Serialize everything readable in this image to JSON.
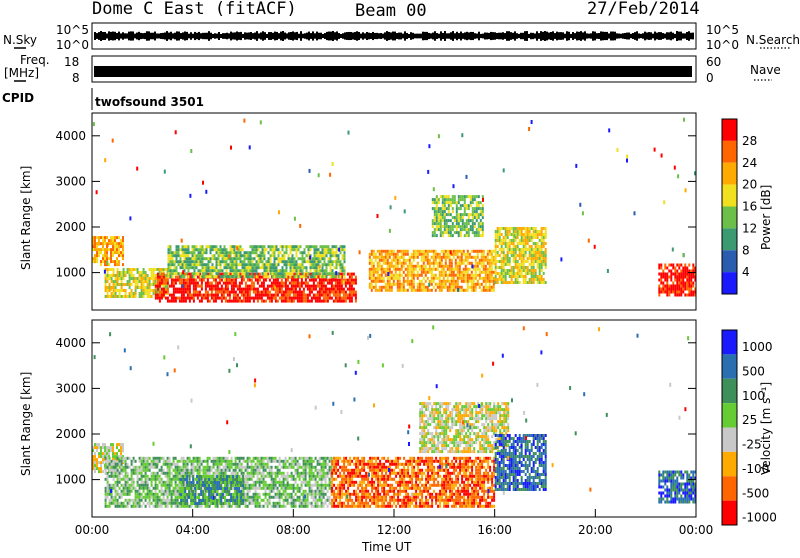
{
  "header": {
    "site": "Dome C East (fitACF)",
    "beam": "Beam 00",
    "date": "27/Feb/2014"
  },
  "strips": {
    "nsky_label": "N.Sky",
    "nsearch_label": "N.Search",
    "freq_label_1": "Freq.",
    "freq_label_2": "[MHz]",
    "nave_label": "Nave",
    "cpid_label": "CPID",
    "cpid_value": "twofsound 3501",
    "noise_ticks": [
      "10^5",
      "10^0"
    ],
    "freq_ticks": [
      "18",
      "8"
    ],
    "nave_ticks": [
      "60",
      "0"
    ]
  },
  "colors": {
    "power": [
      "#1a1aff",
      "#2a5cb0",
      "#3c9a72",
      "#6cc04a",
      "#f0e020",
      "#ffaa00",
      "#ff6600",
      "#ff0000"
    ],
    "velocity": [
      "#ff0000",
      "#ff6600",
      "#ffaa00",
      "#c8c8c8",
      "#66cc33",
      "#3f8f5a",
      "#2a6fb0",
      "#1a1aff"
    ]
  },
  "chart_data": [
    {
      "type": "heatmap",
      "panel": "power",
      "xlabel": "",
      "ylabel": "Slant Range [km]",
      "yticks": [
        "1000",
        "2000",
        "3000",
        "4000"
      ],
      "ylim": [
        180,
        4500
      ],
      "xlim": [
        0,
        24
      ],
      "colorbar_label": "Power [dB]",
      "colorbar_ticks": [
        "4",
        "8",
        "12",
        "16",
        "20",
        "24",
        "28"
      ],
      "regions": [
        {
          "t0": 0.0,
          "t1": 1.2,
          "r0": 1200,
          "r1": 1800,
          "level": 5
        },
        {
          "t0": 0.5,
          "t1": 3.0,
          "r0": 500,
          "r1": 1100,
          "level": 4
        },
        {
          "t0": 2.5,
          "t1": 10.5,
          "r0": 400,
          "r1": 1000,
          "level": 7
        },
        {
          "t0": 3.0,
          "t1": 10.0,
          "r0": 900,
          "r1": 1600,
          "level": 3
        },
        {
          "t0": 11.0,
          "t1": 16.0,
          "r0": 600,
          "r1": 1500,
          "level": 5
        },
        {
          "t0": 13.5,
          "t1": 15.5,
          "r0": 1800,
          "r1": 2700,
          "level": 3
        },
        {
          "t0": 16.0,
          "t1": 18.0,
          "r0": 800,
          "r1": 2000,
          "level": 4
        },
        {
          "t0": 22.5,
          "t1": 24.0,
          "r0": 500,
          "r1": 1200,
          "level": 7
        }
      ]
    },
    {
      "type": "heatmap",
      "panel": "velocity",
      "xlabel": "Time UT",
      "ylabel": "Slant Range [km]",
      "xticks": [
        "00:00",
        "04:00",
        "08:00",
        "12:00",
        "16:00",
        "20:00",
        "00:00"
      ],
      "yticks": [
        "1000",
        "2000",
        "3000",
        "4000"
      ],
      "ylim": [
        180,
        4500
      ],
      "xlim": [
        0,
        24
      ],
      "colorbar_label": "Velocity [m s⁻¹]",
      "colorbar_ticks": [
        "1000",
        "500",
        "100",
        "25",
        "-25",
        "-100",
        "-500",
        "-1000"
      ],
      "regions": [
        {
          "t0": 0.0,
          "t1": 1.2,
          "r0": 1200,
          "r1": 1800,
          "level": 3
        },
        {
          "t0": 0.5,
          "t1": 9.5,
          "r0": 400,
          "r1": 1500,
          "level": 4
        },
        {
          "t0": 3.5,
          "t1": 6.0,
          "r0": 500,
          "r1": 1100,
          "level": 5
        },
        {
          "t0": 9.5,
          "t1": 16.0,
          "r0": 400,
          "r1": 1500,
          "level": 1
        },
        {
          "t0": 13.0,
          "t1": 16.5,
          "r0": 1600,
          "r1": 2700,
          "level": 3
        },
        {
          "t0": 16.0,
          "t1": 18.0,
          "r0": 800,
          "r1": 2000,
          "level": 6
        },
        {
          "t0": 22.5,
          "t1": 24.0,
          "r0": 500,
          "r1": 1200,
          "level": 6
        }
      ]
    }
  ]
}
